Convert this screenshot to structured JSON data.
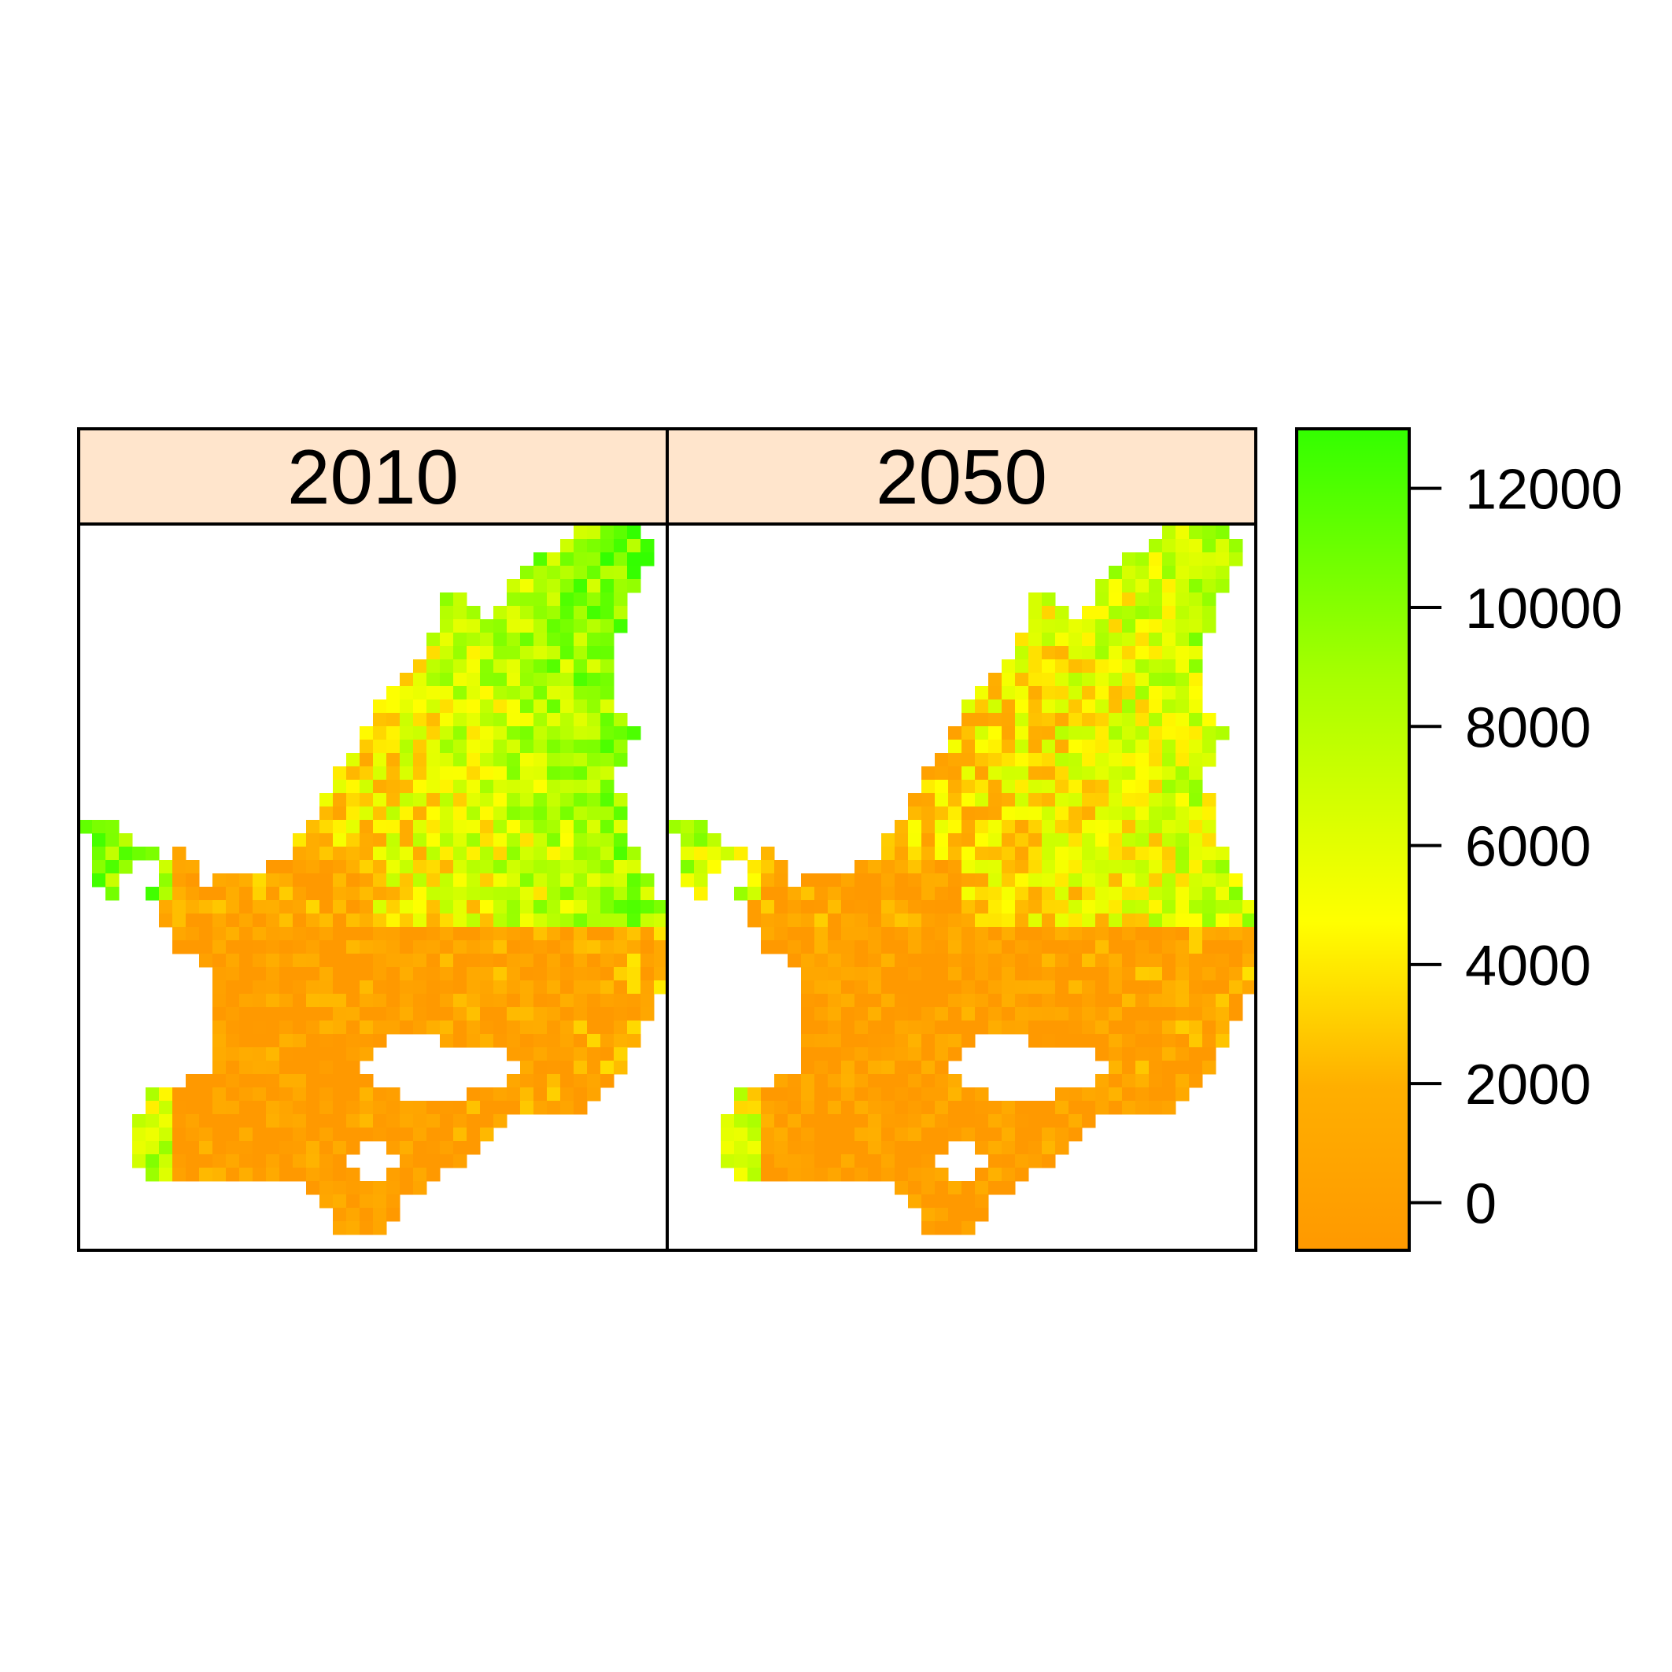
{
  "figure": {
    "type": "raster-map-panels",
    "panels": [
      {
        "label": "2010",
        "strip_color": "#FFE5CC"
      },
      {
        "label": "2050",
        "strip_color": "#FFE5CC"
      }
    ],
    "colorkey": {
      "ticks": [
        "0",
        "2000",
        "4000",
        "6000",
        "8000",
        "10000",
        "12000"
      ],
      "tick_values": [
        0,
        2000,
        4000,
        6000,
        8000,
        10000,
        12000
      ],
      "range": [
        -800,
        13000
      ],
      "colors": [
        "#FF9900",
        "#FFFF00",
        "#33FF00"
      ]
    }
  }
}
